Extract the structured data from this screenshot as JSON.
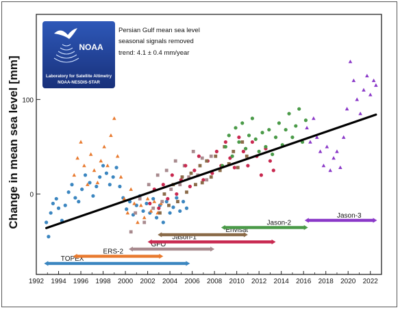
{
  "chart_data": {
    "type": "scatter",
    "title": "",
    "annotation_lines": [
      "Persian Gulf mean sea level",
      "seasonal signals removed",
      "trend:  4.1 ± 0.4 mm/year"
    ],
    "ylabel": "Change in mean sea level [mm]",
    "xlabel": "",
    "xlim": [
      1992,
      2023
    ],
    "ylim": [
      -85,
      190
    ],
    "x_ticks": [
      "1992",
      "1994",
      "1996",
      "1998",
      "2000",
      "2002",
      "2004",
      "2006",
      "2008",
      "2010",
      "2012",
      "2014",
      "2016",
      "2018",
      "2020",
      "2022"
    ],
    "y_ticks": [
      "0",
      "100"
    ],
    "trend": {
      "x": [
        1992.9,
        2022.5
      ],
      "y": [
        -36,
        84
      ],
      "color": "#000000"
    },
    "logo": {
      "name": "NOAA",
      "line1": "Laboratory for Satellite Altimetry",
      "line2": "NOAA-NESDIS-STAR"
    },
    "missions": [
      {
        "name": "TOPEX",
        "start": 1992.7,
        "end": 2005.8,
        "color": "#3b86c0",
        "marker": "circle",
        "label_x": 1994.2,
        "row": 0,
        "points": [
          [
            1992.9,
            -30
          ],
          [
            1993.1,
            -45
          ],
          [
            1993.3,
            -20
          ],
          [
            1993.5,
            -10
          ],
          [
            1993.8,
            -5
          ],
          [
            1994.0,
            -15
          ],
          [
            1994.3,
            -28
          ],
          [
            1994.6,
            -12
          ],
          [
            1994.9,
            2
          ],
          [
            1995.2,
            10
          ],
          [
            1995.5,
            -4
          ],
          [
            1995.8,
            -8
          ],
          [
            1996.1,
            5
          ],
          [
            1996.4,
            20
          ],
          [
            1996.8,
            12
          ],
          [
            1997.1,
            -2
          ],
          [
            1997.4,
            8
          ],
          [
            1997.7,
            18
          ],
          [
            1998.0,
            30
          ],
          [
            1998.3,
            22
          ],
          [
            1998.6,
            10
          ],
          [
            1998.9,
            18
          ],
          [
            1999.2,
            28
          ],
          [
            1999.5,
            8
          ],
          [
            1999.8,
            -4
          ],
          [
            2000.1,
            -16
          ],
          [
            2000.4,
            -8
          ],
          [
            2000.7,
            -22
          ],
          [
            2001.0,
            -12
          ],
          [
            2001.3,
            -2
          ],
          [
            2001.6,
            -18
          ],
          [
            2001.9,
            -10
          ],
          [
            2002.2,
            -20
          ],
          [
            2002.5,
            -5
          ],
          [
            2002.8,
            -25
          ],
          [
            2003.1,
            -12
          ],
          [
            2003.4,
            -30
          ],
          [
            2003.7,
            -8
          ],
          [
            2004.0,
            -20
          ],
          [
            2004.3,
            -14
          ],
          [
            2004.6,
            -4
          ],
          [
            2004.9,
            -18
          ],
          [
            2005.2,
            -8
          ],
          [
            2005.5,
            -15
          ]
        ]
      },
      {
        "name": "ERS-2",
        "start": 1995.3,
        "end": 2003.4,
        "color": "#e87a2f",
        "marker": "triangle",
        "label_x": 1998.0,
        "row": 1,
        "points": [
          [
            1995.4,
            20
          ],
          [
            1995.7,
            38
          ],
          [
            1996.0,
            55
          ],
          [
            1996.3,
            30
          ],
          [
            1996.6,
            10
          ],
          [
            1996.9,
            42
          ],
          [
            1997.2,
            25
          ],
          [
            1997.5,
            12
          ],
          [
            1997.8,
            35
          ],
          [
            1998.1,
            50
          ],
          [
            1998.4,
            30
          ],
          [
            1998.7,
            62
          ],
          [
            1999.0,
            80
          ],
          [
            1999.3,
            40
          ],
          [
            1999.6,
            18
          ],
          [
            1999.9,
            -5
          ],
          [
            2000.2,
            -20
          ],
          [
            2000.5,
            5
          ],
          [
            2000.8,
            -10
          ],
          [
            2001.1,
            -30
          ],
          [
            2001.4,
            -12
          ],
          [
            2001.7,
            -25
          ],
          [
            2002.0,
            -5
          ],
          [
            2002.3,
            -18
          ],
          [
            2002.6,
            -8
          ],
          [
            2002.9,
            -20
          ],
          [
            2003.2,
            -10
          ]
        ]
      },
      {
        "name": "GFO",
        "start": 2000.3,
        "end": 2008.0,
        "color": "#a88a8e",
        "marker": "square",
        "label_x": 2002.3,
        "row": 2,
        "points": [
          [
            2000.5,
            -40
          ],
          [
            2000.9,
            -20
          ],
          [
            2001.3,
            -5
          ],
          [
            2001.7,
            -30
          ],
          [
            2002.1,
            10
          ],
          [
            2002.5,
            -15
          ],
          [
            2002.9,
            20
          ],
          [
            2003.3,
            -8
          ],
          [
            2003.7,
            25
          ],
          [
            2004.1,
            5
          ],
          [
            2004.5,
            35
          ],
          [
            2004.9,
            10
          ],
          [
            2005.3,
            30
          ],
          [
            2005.7,
            18
          ],
          [
            2006.1,
            45
          ],
          [
            2006.5,
            20
          ],
          [
            2006.9,
            38
          ],
          [
            2007.3,
            15
          ],
          [
            2007.7,
            40
          ]
        ]
      },
      {
        "name": "Jason-1",
        "start": 2002.0,
        "end": 2013.5,
        "color": "#c8284f",
        "marker": "circle",
        "label_x": 2004.2,
        "row": 3,
        "points": [
          [
            2002.2,
            -10
          ],
          [
            2002.6,
            5
          ],
          [
            2003.0,
            -15
          ],
          [
            2003.4,
            10
          ],
          [
            2003.8,
            -5
          ],
          [
            2004.2,
            20
          ],
          [
            2004.6,
            0
          ],
          [
            2005.0,
            15
          ],
          [
            2005.4,
            30
          ],
          [
            2005.8,
            8
          ],
          [
            2006.2,
            25
          ],
          [
            2006.6,
            40
          ],
          [
            2007.0,
            15
          ],
          [
            2007.4,
            35
          ],
          [
            2007.8,
            22
          ],
          [
            2008.2,
            45
          ],
          [
            2008.6,
            30
          ],
          [
            2009.0,
            55
          ],
          [
            2009.4,
            38
          ],
          [
            2009.8,
            28
          ],
          [
            2010.2,
            60
          ],
          [
            2010.6,
            45
          ],
          [
            2011.0,
            30
          ],
          [
            2011.4,
            55
          ],
          [
            2011.8,
            40
          ],
          [
            2012.2,
            20
          ],
          [
            2012.6,
            48
          ],
          [
            2013.0,
            35
          ],
          [
            2013.3,
            25
          ]
        ]
      },
      {
        "name": "Envisat",
        "start": 2002.9,
        "end": 2011.0,
        "color": "#8a6a48",
        "marker": "square",
        "label_x": 2009.0,
        "row": 4,
        "points": [
          [
            2003.1,
            -20
          ],
          [
            2003.5,
            0
          ],
          [
            2003.9,
            -12
          ],
          [
            2004.3,
            10
          ],
          [
            2004.7,
            -8
          ],
          [
            2005.1,
            18
          ],
          [
            2005.5,
            2
          ],
          [
            2005.9,
            22
          ],
          [
            2006.3,
            10
          ],
          [
            2006.7,
            30
          ],
          [
            2006.9,
            12
          ],
          [
            2007.3,
            35
          ],
          [
            2007.7,
            18
          ],
          [
            2008.1,
            40
          ],
          [
            2008.5,
            25
          ],
          [
            2008.9,
            50
          ],
          [
            2009.3,
            32
          ],
          [
            2009.7,
            45
          ],
          [
            2010.1,
            28
          ],
          [
            2010.5,
            55
          ],
          [
            2010.9,
            40
          ]
        ]
      },
      {
        "name": "Jason-2",
        "start": 2008.6,
        "end": 2016.4,
        "color": "#4a9a48",
        "marker": "circle",
        "label_x": 2012.7,
        "row": 5,
        "points": [
          [
            2008.7,
            30
          ],
          [
            2009.0,
            50
          ],
          [
            2009.3,
            62
          ],
          [
            2009.6,
            40
          ],
          [
            2009.9,
            70
          ],
          [
            2010.2,
            55
          ],
          [
            2010.5,
            75
          ],
          [
            2010.8,
            48
          ],
          [
            2011.1,
            62
          ],
          [
            2011.4,
            80
          ],
          [
            2011.7,
            58
          ],
          [
            2012.0,
            45
          ],
          [
            2012.3,
            65
          ],
          [
            2012.6,
            50
          ],
          [
            2012.9,
            68
          ],
          [
            2013.2,
            42
          ],
          [
            2013.5,
            60
          ],
          [
            2013.8,
            75
          ],
          [
            2014.1,
            52
          ],
          [
            2014.4,
            68
          ],
          [
            2014.7,
            85
          ],
          [
            2015.0,
            60
          ],
          [
            2015.3,
            72
          ],
          [
            2015.6,
            90
          ],
          [
            2015.9,
            55
          ],
          [
            2016.2,
            78
          ]
        ]
      },
      {
        "name": "Jason-3",
        "start": 2016.1,
        "end": 2022.6,
        "color": "#8a38c8",
        "marker": "triangle",
        "label_x": 2019.0,
        "row": 6,
        "points": [
          [
            2016.3,
            70
          ],
          [
            2016.6,
            55
          ],
          [
            2016.9,
            80
          ],
          [
            2017.2,
            60
          ],
          [
            2017.5,
            45
          ],
          [
            2017.8,
            30
          ],
          [
            2018.1,
            50
          ],
          [
            2018.4,
            25
          ],
          [
            2018.7,
            38
          ],
          [
            2019.0,
            45
          ],
          [
            2019.3,
            28
          ],
          [
            2019.6,
            60
          ],
          [
            2019.9,
            90
          ],
          [
            2020.2,
            140
          ],
          [
            2020.5,
            120
          ],
          [
            2020.8,
            100
          ],
          [
            2021.1,
            85
          ],
          [
            2021.4,
            110
          ],
          [
            2021.7,
            125
          ],
          [
            2022.0,
            105
          ],
          [
            2022.3,
            120
          ],
          [
            2022.5,
            115
          ]
        ]
      }
    ]
  }
}
